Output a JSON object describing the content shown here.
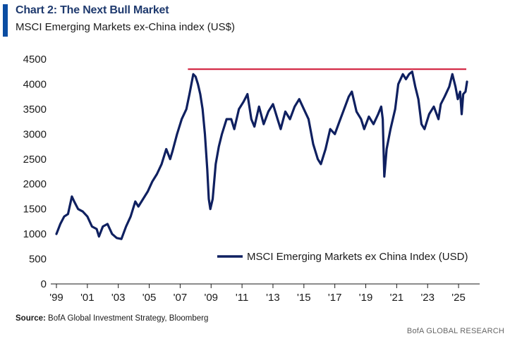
{
  "header": {
    "title": "Chart 2: The Next Bull Market",
    "subtitle": "MSCI Emerging Markets ex-China index (US$)"
  },
  "footer": {
    "source_label": "Source:",
    "source_text": "BofA Global Investment Strategy, Bloomberg",
    "brand": "BofA GLOBAL RESEARCH"
  },
  "colors": {
    "series": "#0f2060",
    "reference_line": "#d11f3d",
    "accent": "#0b4da2"
  },
  "chart_data": {
    "type": "line",
    "title": "Chart 2: The Next Bull Market",
    "subtitle": "MSCI Emerging Markets ex-China index (US$)",
    "ylim": [
      0,
      4500
    ],
    "yticks": [
      0,
      500,
      1000,
      1500,
      2000,
      2500,
      3000,
      3500,
      4000,
      4500
    ],
    "xlim": [
      1999.0,
      2026.0
    ],
    "xticks": [
      1999,
      2001,
      2003,
      2005,
      2007,
      2009,
      2011,
      2013,
      2015,
      2017,
      2019,
      2021,
      2023,
      2025
    ],
    "xtick_labels": [
      "'99",
      "'01",
      "'03",
      "'05",
      "'07",
      "'09",
      "'11",
      "'13",
      "'15",
      "'17",
      "'19",
      "'21",
      "'23",
      "'25"
    ],
    "legend": {
      "position": "bottom-right"
    },
    "grid": false,
    "reference_line": {
      "y": 4300,
      "x_start": 2007.5,
      "x_end": 2025.5
    },
    "series": [
      {
        "name": "MSCI Emerging Markets ex China Index (USD)",
        "x": [
          1999.0,
          1999.25,
          1999.5,
          1999.75,
          2000.0,
          2000.15,
          2000.4,
          2000.7,
          2001.0,
          2001.3,
          2001.6,
          2001.75,
          2002.0,
          2002.3,
          2002.6,
          2002.9,
          2003.2,
          2003.5,
          2003.8,
          2004.1,
          2004.3,
          2004.6,
          2004.9,
          2005.2,
          2005.5,
          2005.8,
          2006.1,
          2006.35,
          2006.5,
          2006.8,
          2007.1,
          2007.4,
          2007.6,
          2007.85,
          2008.0,
          2008.15,
          2008.3,
          2008.45,
          2008.6,
          2008.75,
          2008.85,
          2008.95,
          2009.1,
          2009.3,
          2009.5,
          2009.7,
          2010.0,
          2010.3,
          2010.5,
          2010.8,
          2011.1,
          2011.35,
          2011.6,
          2011.8,
          2012.1,
          2012.4,
          2012.7,
          2013.0,
          2013.3,
          2013.5,
          2013.8,
          2014.1,
          2014.4,
          2014.7,
          2015.0,
          2015.3,
          2015.6,
          2015.9,
          2016.1,
          2016.4,
          2016.7,
          2017.0,
          2017.3,
          2017.6,
          2017.9,
          2018.1,
          2018.4,
          2018.7,
          2018.9,
          2019.2,
          2019.5,
          2019.8,
          2020.0,
          2020.1,
          2020.2,
          2020.35,
          2020.6,
          2020.9,
          2021.1,
          2021.4,
          2021.6,
          2021.8,
          2022.0,
          2022.2,
          2022.4,
          2022.6,
          2022.8,
          2023.1,
          2023.4,
          2023.7,
          2023.85,
          2024.1,
          2024.4,
          2024.6,
          2024.8,
          2024.95,
          2025.1,
          2025.2,
          2025.3,
          2025.45,
          2025.55
        ],
        "values": [
          1000,
          1200,
          1350,
          1400,
          1750,
          1650,
          1500,
          1450,
          1350,
          1150,
          1100,
          950,
          1150,
          1200,
          1000,
          920,
          900,
          1150,
          1350,
          1650,
          1550,
          1700,
          1850,
          2050,
          2200,
          2400,
          2700,
          2500,
          2650,
          3000,
          3300,
          3500,
          3800,
          4200,
          4150,
          4000,
          3800,
          3500,
          3000,
          2300,
          1700,
          1500,
          1700,
          2400,
          2750,
          3000,
          3300,
          3300,
          3100,
          3500,
          3650,
          3800,
          3300,
          3150,
          3550,
          3200,
          3450,
          3600,
          3300,
          3100,
          3450,
          3300,
          3550,
          3700,
          3500,
          3300,
          2800,
          2500,
          2400,
          2700,
          3100,
          3000,
          3250,
          3500,
          3750,
          3850,
          3450,
          3300,
          3100,
          3350,
          3200,
          3400,
          3550,
          3300,
          2150,
          2700,
          3100,
          3500,
          4000,
          4200,
          4100,
          4200,
          4250,
          3950,
          3700,
          3200,
          3100,
          3400,
          3550,
          3300,
          3600,
          3750,
          3950,
          4200,
          3950,
          3700,
          3850,
          3400,
          3800,
          3850,
          4050
        ]
      }
    ]
  }
}
